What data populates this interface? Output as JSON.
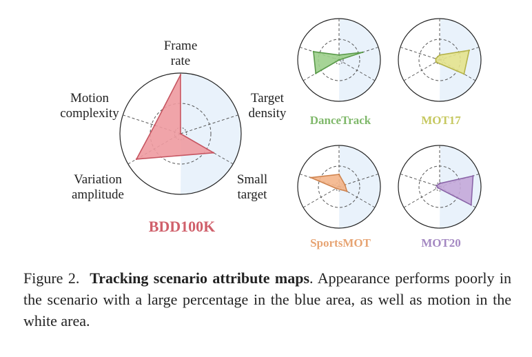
{
  "chart_data": [
    {
      "type": "radar",
      "title": "BDD100K",
      "axes": [
        "Frame rate",
        "Target density",
        "Small target",
        "Variation amplitude",
        "Motion complexity"
      ],
      "axis_label_lines": [
        [
          "Frame",
          "rate"
        ],
        [
          "Target",
          "density"
        ],
        [
          "Small",
          "target"
        ],
        [
          "Variation",
          "amplitude"
        ],
        [
          "Motion",
          "complexity"
        ]
      ],
      "values": [
        0.97,
        0.0,
        0.63,
        0.84,
        0.45
      ],
      "range": [
        0,
        1
      ],
      "gridlines": [
        0.5
      ],
      "fill_color": "#ee9aa0",
      "stroke_color": "#c65561",
      "title_color": "#d0606b",
      "blue_area_color": "#e9f2fb"
    },
    {
      "type": "radar",
      "title": "DanceTrack",
      "axes": [
        "Frame rate",
        "Target density",
        "Small target",
        "Variation amplitude",
        "Motion complexity"
      ],
      "values": [
        0.12,
        0.6,
        0.0,
        0.65,
        0.65
      ],
      "range": [
        0,
        1
      ],
      "fill_color": "#9ccf8b",
      "stroke_color": "#5a9a4a",
      "title_color": "#7fb86a"
    },
    {
      "type": "radar",
      "title": "MOT17",
      "axes": [
        "Frame rate",
        "Target density",
        "Small target",
        "Variation amplitude",
        "Motion complexity"
      ],
      "values": [
        0.12,
        0.75,
        0.68,
        0.1,
        0.1
      ],
      "range": [
        0,
        1
      ],
      "fill_color": "#e4e38d",
      "stroke_color": "#b5b34a",
      "title_color": "#c6c860"
    },
    {
      "type": "radar",
      "title": "SportsMOT",
      "axes": [
        "Frame rate",
        "Target density",
        "Small target",
        "Variation amplitude",
        "Motion complexity"
      ],
      "values": [
        0.3,
        0.15,
        0.22,
        0.08,
        0.72
      ],
      "range": [
        0,
        1
      ],
      "fill_color": "#f4b58a",
      "stroke_color": "#cf8450",
      "title_color": "#e7a473"
    },
    {
      "type": "radar",
      "title": "MOT20",
      "axes": [
        "Frame rate",
        "Target density",
        "Small target",
        "Variation amplitude",
        "Motion complexity"
      ],
      "values": [
        0.08,
        0.85,
        0.88,
        0.05,
        0.08
      ],
      "range": [
        0,
        1
      ],
      "fill_color": "#c4a8d9",
      "stroke_color": "#8a65a8",
      "title_color": "#a488c2"
    }
  ],
  "caption": {
    "prefix": "Figure 2.",
    "bold": "Tracking scenario attribute maps",
    "rest": ". Appearance performs poorly in the scenario with a large percentage in the blue area, as well as motion in the white area."
  }
}
